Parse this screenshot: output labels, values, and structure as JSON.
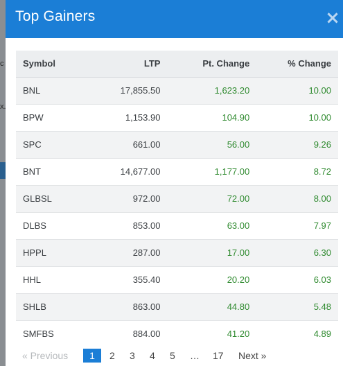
{
  "modal": {
    "title": "Top Gainers",
    "close_glyph": "×"
  },
  "table": {
    "headers": [
      "Symbol",
      "LTP",
      "Pt. Change",
      "% Change"
    ],
    "rows": [
      [
        "BNL",
        "17,855.50",
        "1,623.20",
        "10.00"
      ],
      [
        "BPW",
        "1,153.90",
        "104.90",
        "10.00"
      ],
      [
        "SPC",
        "661.00",
        "56.00",
        "9.26"
      ],
      [
        "BNT",
        "14,677.00",
        "1,177.00",
        "8.72"
      ],
      [
        "GLBSL",
        "972.00",
        "72.00",
        "8.00"
      ],
      [
        "DLBS",
        "853.00",
        "63.00",
        "7.97"
      ],
      [
        "HPPL",
        "287.00",
        "17.00",
        "6.30"
      ],
      [
        "HHL",
        "355.40",
        "20.20",
        "6.03"
      ],
      [
        "SHLB",
        "863.00",
        "44.80",
        "5.48"
      ],
      [
        "SMFBS",
        "884.00",
        "41.20",
        "4.89"
      ]
    ]
  },
  "pagination": {
    "prev_label": "« Previous",
    "pages": [
      "1",
      "2",
      "3",
      "4",
      "5",
      "…",
      "17"
    ],
    "current": "1",
    "next_label": "Next »"
  },
  "backdrop": {
    "fragments": [
      "c",
      "x."
    ]
  },
  "colors": {
    "header": "#1b7ed6",
    "positive": "#2f8a2f",
    "active_page": "#1b7ed6"
  },
  "icons": {
    "close": "close-icon"
  }
}
